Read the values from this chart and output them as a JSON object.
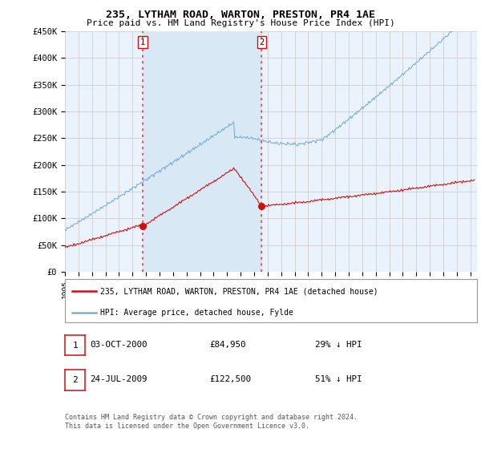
{
  "title": "235, LYTHAM ROAD, WARTON, PRESTON, PR4 1AE",
  "subtitle": "Price paid vs. HM Land Registry's House Price Index (HPI)",
  "ylim": [
    0,
    450000
  ],
  "yticks": [
    0,
    50000,
    100000,
    150000,
    200000,
    250000,
    300000,
    350000,
    400000,
    450000
  ],
  "ytick_labels": [
    "£0",
    "£50K",
    "£100K",
    "£150K",
    "£200K",
    "£250K",
    "£300K",
    "£350K",
    "£400K",
    "£450K"
  ],
  "xlim_start": 1995.0,
  "xlim_end": 2025.5,
  "transactions": [
    {
      "date_num": 2000.75,
      "price": 84950,
      "label": "1"
    },
    {
      "date_num": 2009.55,
      "price": 122500,
      "label": "2"
    }
  ],
  "vline_color": "#EE3333",
  "hpi_color": "#7BAFD4",
  "price_color": "#CC1111",
  "shade_color": "#D8E8F5",
  "legend_label_price": "235, LYTHAM ROAD, WARTON, PRESTON, PR4 1AE (detached house)",
  "legend_label_hpi": "HPI: Average price, detached house, Fylde",
  "table_rows": [
    {
      "num": "1",
      "date": "03-OCT-2000",
      "price": "£84,950",
      "pct": "29% ↓ HPI"
    },
    {
      "num": "2",
      "date": "24-JUL-2009",
      "price": "£122,500",
      "pct": "51% ↓ HPI"
    }
  ],
  "footnote1": "Contains HM Land Registry data © Crown copyright and database right 2024.",
  "footnote2": "This data is licensed under the Open Government Licence v3.0.",
  "background_color": "#FFFFFF",
  "plot_bg_color": "#EAF2FB",
  "grid_color": "#C8C8C8"
}
